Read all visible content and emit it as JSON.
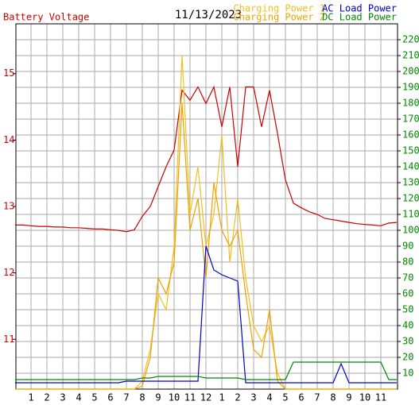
{
  "chart_data": {
    "type": "line",
    "title": "11/13/2023",
    "x": [
      0,
      0.5,
      1,
      1.5,
      2,
      2.5,
      3,
      3.5,
      4,
      4.5,
      5,
      5.5,
      6,
      6.5,
      7,
      7.5,
      8,
      8.5,
      9,
      9.5,
      10,
      10.5,
      11,
      11.5,
      12,
      12.5,
      13,
      13.5,
      14,
      14.5,
      15,
      15.5,
      16,
      16.5,
      17,
      17.5,
      18,
      18.5,
      19,
      19.5,
      20,
      20.5,
      21,
      21.5,
      22,
      22.5,
      23,
      23.5,
      24
    ],
    "xlim": [
      0,
      24
    ],
    "xticks": [
      1,
      2,
      3,
      4,
      5,
      6,
      7,
      8,
      9,
      10,
      11,
      12,
      {
        "value": 13,
        "label": "1"
      },
      {
        "value": 14,
        "label": "2"
      },
      {
        "value": 15,
        "label": "3"
      },
      {
        "value": 16,
        "label": "4"
      },
      {
        "value": 17,
        "label": "5"
      },
      {
        "value": 18,
        "label": "6"
      },
      {
        "value": 19,
        "label": "7"
      },
      {
        "value": 20,
        "label": "8"
      },
      {
        "value": 21,
        "label": "9"
      },
      {
        "value": 22,
        "label": "10"
      },
      {
        "value": 23,
        "label": "11"
      }
    ],
    "ylim": [
      10.25,
      15.75
    ],
    "yticks": [
      11,
      12,
      13,
      14,
      15
    ],
    "y2lim": [
      0,
      230
    ],
    "y2ticks": [
      10,
      20,
      30,
      40,
      50,
      60,
      70,
      80,
      90,
      100,
      110,
      120,
      130,
      140,
      150,
      160,
      170,
      180,
      190,
      200,
      210,
      220
    ],
    "grid": true,
    "series": [
      {
        "name": "Battery Voltage",
        "color": "#cc0000",
        "values": [
          12.72,
          12.72,
          12.71,
          12.7,
          12.7,
          12.69,
          12.69,
          12.68,
          12.68,
          12.67,
          12.66,
          12.66,
          12.65,
          12.64,
          12.62,
          12.65,
          12.85,
          13.0,
          13.3,
          13.6,
          13.85,
          14.75,
          14.6,
          14.8,
          14.55,
          14.8,
          14.2,
          14.8,
          13.6,
          14.8,
          14.8,
          14.2,
          14.75,
          14.1,
          13.4,
          13.05,
          12.98,
          12.92,
          12.88,
          12.82,
          12.8,
          12.78,
          12.76,
          12.74,
          12.73,
          12.72,
          12.71,
          12.75,
          12.76
        ]
      },
      {
        "name": "Charging Power 1",
        "color": "#f0c020",
        "axis": "y2",
        "values": [
          0,
          0,
          0,
          0,
          0,
          0,
          0,
          0,
          0,
          0,
          0,
          0,
          0,
          0,
          0,
          0,
          5,
          25,
          60,
          50,
          90,
          210,
          110,
          140,
          90,
          110,
          160,
          80,
          120,
          70,
          40,
          30,
          40,
          10,
          0,
          0,
          0,
          0,
          0,
          0,
          0,
          0,
          0,
          0,
          0,
          0,
          0,
          0,
          0
        ]
      },
      {
        "name": "Charging Power 2",
        "color": "#f0a000",
        "axis": "y2",
        "values": [
          0,
          0,
          0,
          0,
          0,
          0,
          0,
          0,
          0,
          0,
          0,
          0,
          0,
          0,
          0,
          0,
          2,
          20,
          70,
          60,
          80,
          180,
          100,
          120,
          70,
          130,
          100,
          90,
          100,
          60,
          25,
          20,
          50,
          5,
          0,
          0,
          0,
          0,
          0,
          0,
          0,
          0,
          0,
          0,
          0,
          0,
          0,
          0,
          0
        ]
      },
      {
        "name": "AC Load Power",
        "color": "#0000cc",
        "axis": "y2",
        "values": [
          4,
          4,
          4,
          4,
          4,
          4,
          4,
          4,
          4,
          4,
          4,
          4,
          4,
          4,
          5,
          5,
          5,
          5,
          5,
          5,
          5,
          5,
          5,
          5,
          90,
          75,
          72,
          70,
          68,
          4,
          4,
          4,
          4,
          4,
          4,
          4,
          4,
          4,
          4,
          4,
          4,
          16,
          4,
          4,
          4,
          4,
          4,
          4,
          4
        ]
      },
      {
        "name": "DC Load Power",
        "color": "#008800",
        "axis": "y2",
        "values": [
          6,
          6,
          6,
          6,
          6,
          6,
          6,
          6,
          6,
          6,
          6,
          6,
          6,
          6,
          6,
          6,
          7,
          7,
          8,
          8,
          8,
          8,
          8,
          8,
          7,
          7,
          7,
          7,
          7,
          6,
          6,
          6,
          6,
          6,
          6,
          17,
          17,
          17,
          17,
          17,
          17,
          17,
          17,
          17,
          17,
          17,
          17,
          6,
          6
        ]
      }
    ]
  }
}
